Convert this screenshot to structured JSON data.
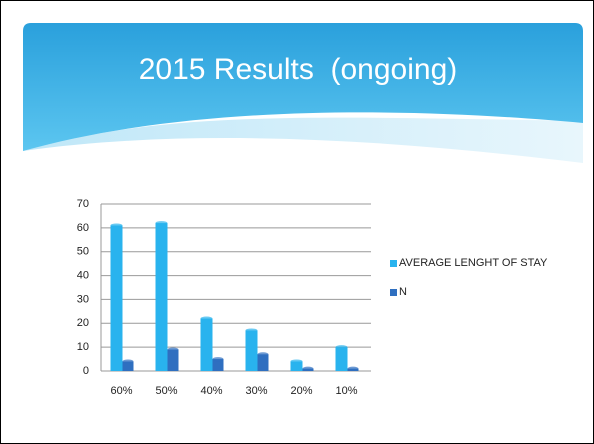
{
  "chart_data": {
    "type": "bar",
    "title": "2015 Results  (ongoing)",
    "categories": [
      "60%",
      "50%",
      "40%",
      "30%",
      "20%",
      "10%"
    ],
    "series": [
      {
        "name": "AVERAGE LENGHT OF STAY",
        "color": "#29b3ee",
        "values": [
          61,
          62,
          22,
          17,
          4,
          10
        ]
      },
      {
        "name": "N",
        "color": "#2f6fc0",
        "values": [
          4,
          9,
          5,
          7,
          1,
          1
        ]
      }
    ],
    "ylim": [
      0,
      70
    ],
    "yticks": [
      0,
      10,
      20,
      30,
      40,
      50,
      60,
      70
    ],
    "grid": true,
    "legend": "right"
  }
}
